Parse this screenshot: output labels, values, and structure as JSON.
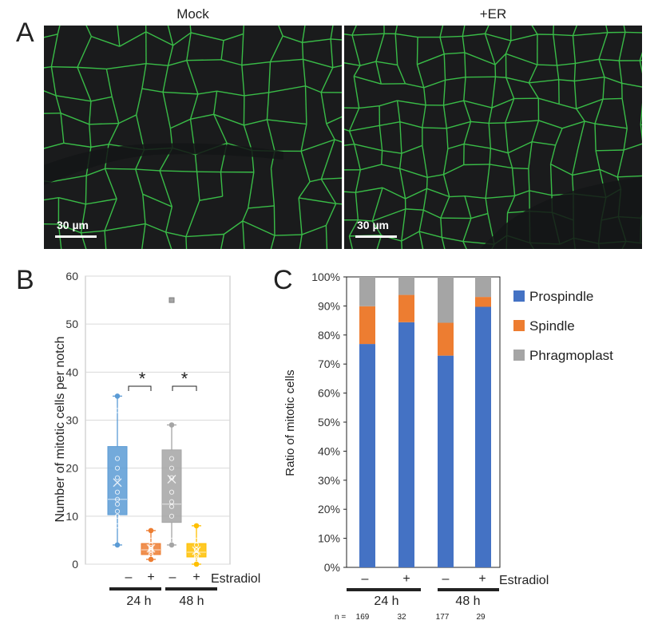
{
  "panelA": {
    "letter": "A",
    "left_title": "Mock",
    "right_title": "+ER",
    "scale_bar_left": "30 µm",
    "scale_bar_right": "30 µm"
  },
  "panelB": {
    "letter": "B",
    "ylabel": "Number of mitotic cells  per notch",
    "treatment_label": "Estradiol",
    "sign_minus": "–",
    "sign_plus": "+",
    "group_labels": [
      "24 h",
      "48 h"
    ],
    "significance": [
      "*",
      "*"
    ]
  },
  "panelC": {
    "letter": "C",
    "ylabel": "Ratio of mitotic cells",
    "treatment_label": "Estradiol",
    "sign_minus": "–",
    "sign_plus": "+",
    "group_labels": [
      "24 h",
      "48 h"
    ],
    "n_prefix": "n = ",
    "n_values": [
      "169",
      "32",
      "177",
      "29"
    ]
  },
  "chart_data": [
    {
      "type": "box",
      "ylim": [
        0,
        60
      ],
      "yticks": [
        "0",
        "10",
        "20",
        "30",
        "40",
        "50",
        "60"
      ],
      "grid": true,
      "boxes": [
        {
          "group": "24 h",
          "estradiol": "–",
          "color": "#5b9bd5",
          "min": 4,
          "q1": 10.3,
          "median": 13.5,
          "q3": 24.5,
          "max": 35,
          "mean": 17,
          "points": [
            8,
            10,
            11,
            12.5,
            13.5,
            15,
            18,
            20,
            22,
            32
          ]
        },
        {
          "group": "24 h",
          "estradiol": "+",
          "color": "#ed7d31",
          "min": 1,
          "q1": 2,
          "median": 3,
          "q3": 4.3,
          "max": 7,
          "mean": 3.3,
          "points": [
            1,
            2,
            2.5,
            3,
            3,
            3.5,
            4,
            5
          ]
        },
        {
          "group": "48 h",
          "estradiol": "–",
          "color": "#a5a5a5",
          "min": 4,
          "q1": 8.7,
          "median": 12.5,
          "q3": 23.8,
          "max": 29,
          "mean": 17.7,
          "points": [
            5,
            10,
            12,
            13,
            15,
            18,
            20,
            22
          ],
          "outliers": [
            55
          ]
        },
        {
          "group": "48 h",
          "estradiol": "+",
          "color": "#ffc000",
          "min": 0,
          "q1": 1.5,
          "median": 2.5,
          "q3": 4.3,
          "max": 8,
          "mean": 2.8,
          "points": [
            1,
            1.5,
            2,
            3,
            3,
            4,
            5
          ]
        }
      ]
    },
    {
      "type": "bar",
      "stacked": true,
      "ylim": [
        0,
        100
      ],
      "yticks": [
        "0%",
        "10%",
        "20%",
        "30%",
        "40%",
        "50%",
        "60%",
        "70%",
        "80%",
        "90%",
        "100%"
      ],
      "categories": [
        "24 h –",
        "24 h +",
        "48 h –",
        "48 h +"
      ],
      "legend_position": "right",
      "series": [
        {
          "name": "Prospindle",
          "color": "#4472c4",
          "values": [
            76.9,
            84.4,
            72.9,
            89.7
          ]
        },
        {
          "name": "Spindle",
          "color": "#ed7d31",
          "values": [
            13.0,
            9.4,
            11.3,
            3.4
          ]
        },
        {
          "name": "Phragmoplast",
          "color": "#a5a5a5",
          "values": [
            10.1,
            6.2,
            15.8,
            6.9
          ]
        }
      ]
    }
  ]
}
